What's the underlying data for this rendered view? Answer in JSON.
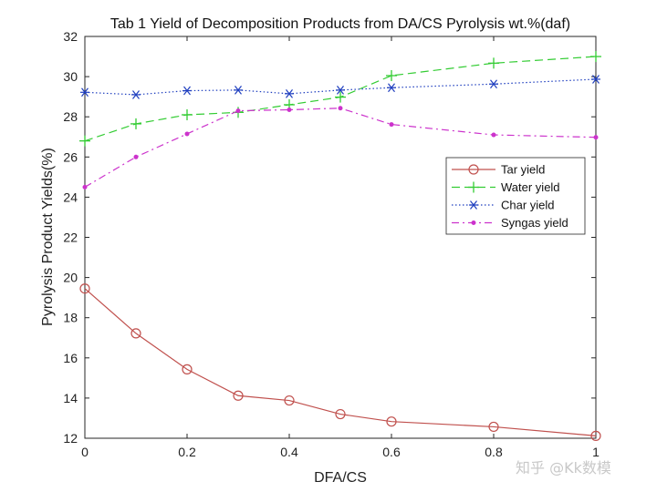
{
  "chart_data": {
    "type": "line",
    "title": "Tab 1 Yield of Decomposition Products from DA/CS Pyrolysis wt.%(daf)",
    "xlabel": "DFA/CS",
    "ylabel": "Pyrolysis Product Yields(%)",
    "xlim": [
      0,
      1
    ],
    "ylim": [
      12,
      32
    ],
    "xticks": [
      0,
      0.2,
      0.4,
      0.6,
      0.8,
      1
    ],
    "xtick_labels": [
      "0",
      "0.2",
      "0.4",
      "0.6",
      "0.8",
      "1"
    ],
    "yticks": [
      12,
      14,
      16,
      18,
      20,
      22,
      24,
      26,
      28,
      30,
      32
    ],
    "ytick_labels": [
      "12",
      "14",
      "16",
      "18",
      "20",
      "22",
      "24",
      "26",
      "28",
      "30",
      "32"
    ],
    "grid": false,
    "legend_position": "right",
    "series": [
      {
        "name": "Tar yield",
        "color": "#c0504d",
        "marker": "circle",
        "linestyle": "solid",
        "x": [
          0,
          0.1,
          0.2,
          0.3,
          0.4,
          0.5,
          0.6,
          0.8,
          1
        ],
        "values": [
          19.45,
          17.22,
          15.43,
          14.12,
          13.88,
          13.2,
          12.83,
          12.57,
          12.12
        ]
      },
      {
        "name": "Water yield",
        "color": "#33cc33",
        "marker": "plus",
        "linestyle": "dashed",
        "x": [
          0,
          0.1,
          0.2,
          0.3,
          0.4,
          0.5,
          0.6,
          0.8,
          1
        ],
        "values": [
          26.8,
          27.65,
          28.1,
          28.22,
          28.6,
          28.98,
          30.05,
          30.67,
          31.0
        ]
      },
      {
        "name": "Char yield",
        "color": "#1f3fbf",
        "marker": "asterisk",
        "linestyle": "dotted",
        "x": [
          0,
          0.1,
          0.2,
          0.3,
          0.4,
          0.5,
          0.6,
          0.8,
          1
        ],
        "values": [
          29.22,
          29.1,
          29.3,
          29.33,
          29.15,
          29.33,
          29.45,
          29.63,
          29.87
        ]
      },
      {
        "name": "Syngas yield",
        "color": "#cc33cc",
        "marker": "dot",
        "linestyle": "dashdot",
        "x": [
          0,
          0.1,
          0.2,
          0.3,
          0.4,
          0.5,
          0.6,
          0.8,
          1
        ],
        "values": [
          24.5,
          26.0,
          27.15,
          28.3,
          28.35,
          28.43,
          27.62,
          27.1,
          26.98
        ]
      }
    ]
  },
  "watermark": "知乎 @Kk数模"
}
